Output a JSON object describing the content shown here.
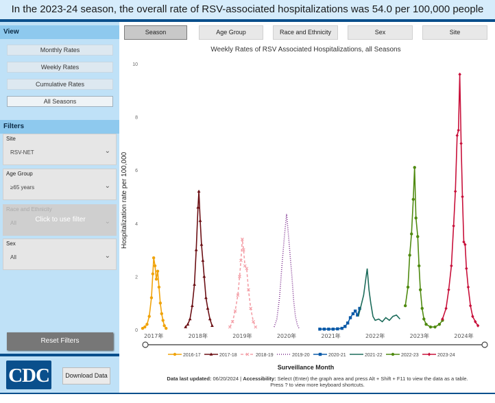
{
  "banner": {
    "text": "In the 2023-24 season, the overall rate of RSV-associated hospitalizations was 54.0 per 100,000 people"
  },
  "sidebar": {
    "view_title": "View",
    "view_buttons": [
      {
        "label": "Monthly Rates",
        "active": false
      },
      {
        "label": "Weekly Rates",
        "active": false
      },
      {
        "label": "Cumulative Rates",
        "active": false
      },
      {
        "label": "All Seasons",
        "active": true
      }
    ],
    "filters_title": "Filters",
    "filters": [
      {
        "label": "Site",
        "value": "RSV-NET"
      },
      {
        "label": "Age Group",
        "value": "≥65 years"
      },
      {
        "label": "Race and Ethnicity",
        "value": "All",
        "overlay": "Click to use filter",
        "disabled": true
      },
      {
        "label": "Sex",
        "value": "All"
      }
    ],
    "reset_label": "Reset Filters",
    "logo_text": "CDC",
    "download_label": "Download Data"
  },
  "tabs": [
    {
      "label": "Season",
      "active": true
    },
    {
      "label": "Age Group",
      "active": false
    },
    {
      "label": "Race and Ethnicity",
      "active": false
    },
    {
      "label": "Sex",
      "active": false
    },
    {
      "label": "Site",
      "active": false
    }
  ],
  "chart_data": {
    "type": "line",
    "title": "Weekly Rates of RSV Associated Hospitalizations, all Seasons",
    "xlabel": "Surveillance Month",
    "ylabel": "Hospitalization rate per 100,000",
    "ylim": [
      0,
      10
    ],
    "yticks": [
      0,
      2,
      4,
      6,
      8,
      10
    ],
    "xticks": [
      "2017年",
      "2018年",
      "2019年",
      "2020年",
      "2021年",
      "2022年",
      "2023年",
      "2024年"
    ],
    "xrange": [
      2016.75,
      2024.55
    ],
    "legend_position": "bottom",
    "series": [
      {
        "name": "2016-17",
        "color": "#f0a30a",
        "marker": "circle",
        "dash": "",
        "points": [
          [
            2016.75,
            0.05
          ],
          [
            2016.8,
            0.1
          ],
          [
            2016.85,
            0.2
          ],
          [
            2016.9,
            0.5
          ],
          [
            2016.95,
            1.2
          ],
          [
            2016.98,
            2.1
          ],
          [
            2017.0,
            2.7
          ],
          [
            2017.03,
            2.4
          ],
          [
            2017.06,
            1.9
          ],
          [
            2017.09,
            2.2
          ],
          [
            2017.12,
            1.6
          ],
          [
            2017.15,
            1.0
          ],
          [
            2017.18,
            0.6
          ],
          [
            2017.21,
            0.35
          ],
          [
            2017.24,
            0.15
          ],
          [
            2017.28,
            0.05
          ]
        ]
      },
      {
        "name": "2017-18",
        "color": "#6b0f14",
        "marker": "triangle",
        "dash": "",
        "points": [
          [
            2017.72,
            0.1
          ],
          [
            2017.77,
            0.2
          ],
          [
            2017.82,
            0.4
          ],
          [
            2017.87,
            0.9
          ],
          [
            2017.92,
            1.7
          ],
          [
            2017.96,
            3.0
          ],
          [
            2018.0,
            4.6
          ],
          [
            2018.02,
            5.2
          ],
          [
            2018.05,
            4.1
          ],
          [
            2018.08,
            3.2
          ],
          [
            2018.11,
            2.6
          ],
          [
            2018.14,
            2.0
          ],
          [
            2018.18,
            1.2
          ],
          [
            2018.22,
            0.8
          ],
          [
            2018.27,
            0.4
          ],
          [
            2018.32,
            0.15
          ]
        ]
      },
      {
        "name": "2018-19",
        "color": "#f4a0a8",
        "marker": "cross",
        "dash": "4,3",
        "points": [
          [
            2018.72,
            0.1
          ],
          [
            2018.78,
            0.3
          ],
          [
            2018.84,
            0.7
          ],
          [
            2018.9,
            1.3
          ],
          [
            2018.94,
            2.0
          ],
          [
            2018.97,
            2.6
          ],
          [
            2019.0,
            3.4
          ],
          [
            2019.03,
            3.0
          ],
          [
            2019.06,
            2.4
          ],
          [
            2019.1,
            2.3
          ],
          [
            2019.14,
            1.5
          ],
          [
            2019.19,
            0.8
          ],
          [
            2019.25,
            0.3
          ],
          [
            2019.3,
            0.1
          ]
        ]
      },
      {
        "name": "2019-20",
        "color": "#7a2a8c",
        "marker": "none",
        "dash": "1,2",
        "points": [
          [
            2019.72,
            0.1
          ],
          [
            2019.78,
            0.4
          ],
          [
            2019.84,
            1.2
          ],
          [
            2019.9,
            2.5
          ],
          [
            2019.95,
            3.5
          ],
          [
            2020.0,
            4.35
          ],
          [
            2020.03,
            3.8
          ],
          [
            2020.06,
            3.2
          ],
          [
            2020.09,
            2.6
          ],
          [
            2020.12,
            2.0
          ],
          [
            2020.16,
            1.1
          ],
          [
            2020.2,
            0.5
          ],
          [
            2020.24,
            0.2
          ],
          [
            2020.28,
            0.05
          ]
        ]
      },
      {
        "name": "2020-21",
        "color": "#0a5aa8",
        "marker": "square",
        "dash": "",
        "points": [
          [
            2020.75,
            0.02
          ],
          [
            2020.85,
            0.02
          ],
          [
            2020.95,
            0.02
          ],
          [
            2021.05,
            0.02
          ],
          [
            2021.15,
            0.03
          ],
          [
            2021.25,
            0.05
          ],
          [
            2021.32,
            0.12
          ],
          [
            2021.38,
            0.25
          ],
          [
            2021.44,
            0.45
          ],
          [
            2021.5,
            0.6
          ],
          [
            2021.55,
            0.7
          ],
          [
            2021.6,
            0.55
          ],
          [
            2021.65,
            0.8
          ]
        ]
      },
      {
        "name": "2021-22",
        "color": "#1b6b5a",
        "marker": "none",
        "dash": "",
        "points": [
          [
            2021.62,
            0.5
          ],
          [
            2021.68,
            0.9
          ],
          [
            2021.74,
            1.3
          ],
          [
            2021.78,
            1.8
          ],
          [
            2021.82,
            2.3
          ],
          [
            2021.86,
            1.5
          ],
          [
            2021.9,
            1.0
          ],
          [
            2021.95,
            0.5
          ],
          [
            2022.0,
            0.35
          ],
          [
            2022.08,
            0.4
          ],
          [
            2022.16,
            0.3
          ],
          [
            2022.24,
            0.45
          ],
          [
            2022.32,
            0.35
          ],
          [
            2022.4,
            0.5
          ],
          [
            2022.48,
            0.55
          ],
          [
            2022.56,
            0.4
          ]
        ]
      },
      {
        "name": "2022-23",
        "color": "#4f8a10",
        "marker": "circle",
        "dash": "",
        "points": [
          [
            2022.68,
            0.9
          ],
          [
            2022.74,
            1.6
          ],
          [
            2022.78,
            2.8
          ],
          [
            2022.82,
            3.6
          ],
          [
            2022.86,
            4.9
          ],
          [
            2022.89,
            6.1
          ],
          [
            2022.92,
            4.2
          ],
          [
            2022.96,
            3.5
          ],
          [
            2022.99,
            2.4
          ],
          [
            2023.02,
            1.5
          ],
          [
            2023.06,
            0.8
          ],
          [
            2023.1,
            0.4
          ],
          [
            2023.15,
            0.2
          ],
          [
            2023.25,
            0.1
          ],
          [
            2023.35,
            0.1
          ],
          [
            2023.45,
            0.2
          ],
          [
            2023.52,
            0.35
          ]
        ]
      },
      {
        "name": "2023-24",
        "color": "#c8103a",
        "marker": "diamond",
        "dash": "",
        "points": [
          [
            2023.52,
            0.4
          ],
          [
            2023.6,
            0.8
          ],
          [
            2023.66,
            1.5
          ],
          [
            2023.72,
            2.4
          ],
          [
            2023.77,
            3.9
          ],
          [
            2023.81,
            5.2
          ],
          [
            2023.85,
            7.3
          ],
          [
            2023.88,
            7.5
          ],
          [
            2023.91,
            9.6
          ],
          [
            2023.94,
            7.0
          ],
          [
            2023.97,
            5.0
          ],
          [
            2024.0,
            3.3
          ],
          [
            2024.03,
            3.2
          ],
          [
            2024.06,
            2.3
          ],
          [
            2024.1,
            1.6
          ],
          [
            2024.15,
            0.9
          ],
          [
            2024.2,
            0.5
          ],
          [
            2024.26,
            0.3
          ],
          [
            2024.32,
            0.15
          ]
        ]
      }
    ]
  },
  "footer": {
    "updated_label": "Data last updated:",
    "updated_value": "06/20/2024",
    "accessibility_label": "Accessibility:",
    "accessibility_text": "Select (Enter) the graph area and press Alt + Shift + F11 to view the data as a table.",
    "shortcut_text": "Press ? to view more keyboard shortcuts."
  }
}
